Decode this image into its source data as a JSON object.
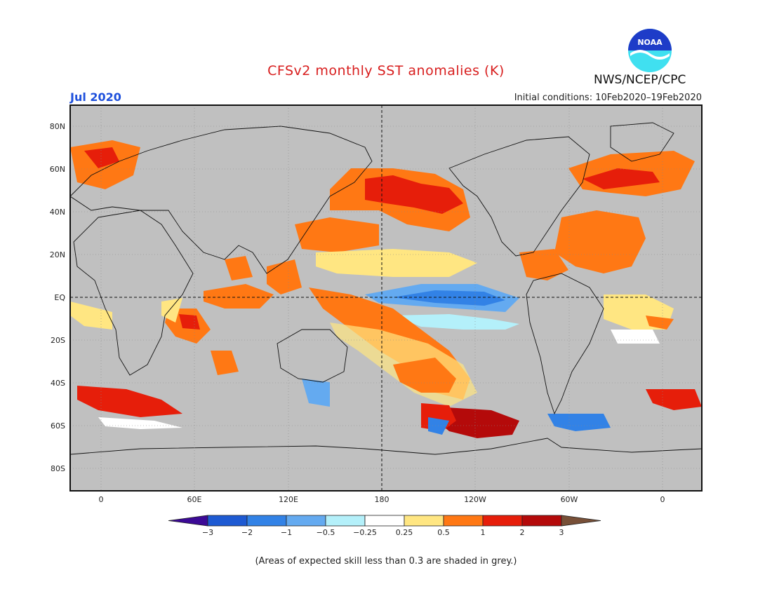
{
  "title": "CFSv2 monthly SST anomalies (K)",
  "month": "Jul 2020",
  "agency": "NWS/NCEP/CPC",
  "logo_text": "NOAA",
  "initial_conditions": "Initial conditions: 10Feb2020–19Feb2020",
  "footnote": "(Areas of expected skill less than 0.3 are shaded in grey.)",
  "lat_labels": [
    "80N",
    "60N",
    "40N",
    "20N",
    "EQ",
    "20S",
    "40S",
    "60S",
    "80S"
  ],
  "lon_labels": [
    "0",
    "60E",
    "120E",
    "180",
    "120W",
    "60W",
    "0"
  ],
  "colorbar": {
    "labels": [
      "−3",
      "−2",
      "−1",
      "−0.5",
      "−0.25",
      "0.25",
      "0.5",
      "1",
      "2",
      "3"
    ],
    "colors": [
      "#3c0a96",
      "#1e5ad2",
      "#3282e6",
      "#64aaf0",
      "#b4f0fa",
      "#ffffff",
      "#ffe682",
      "#ff7814",
      "#e61e0a",
      "#b40a0a",
      "#785038"
    ]
  },
  "colors": {
    "grey_mask": "#c0c0c0",
    "title": "#d81e1e",
    "month": "#1e50dc"
  }
}
